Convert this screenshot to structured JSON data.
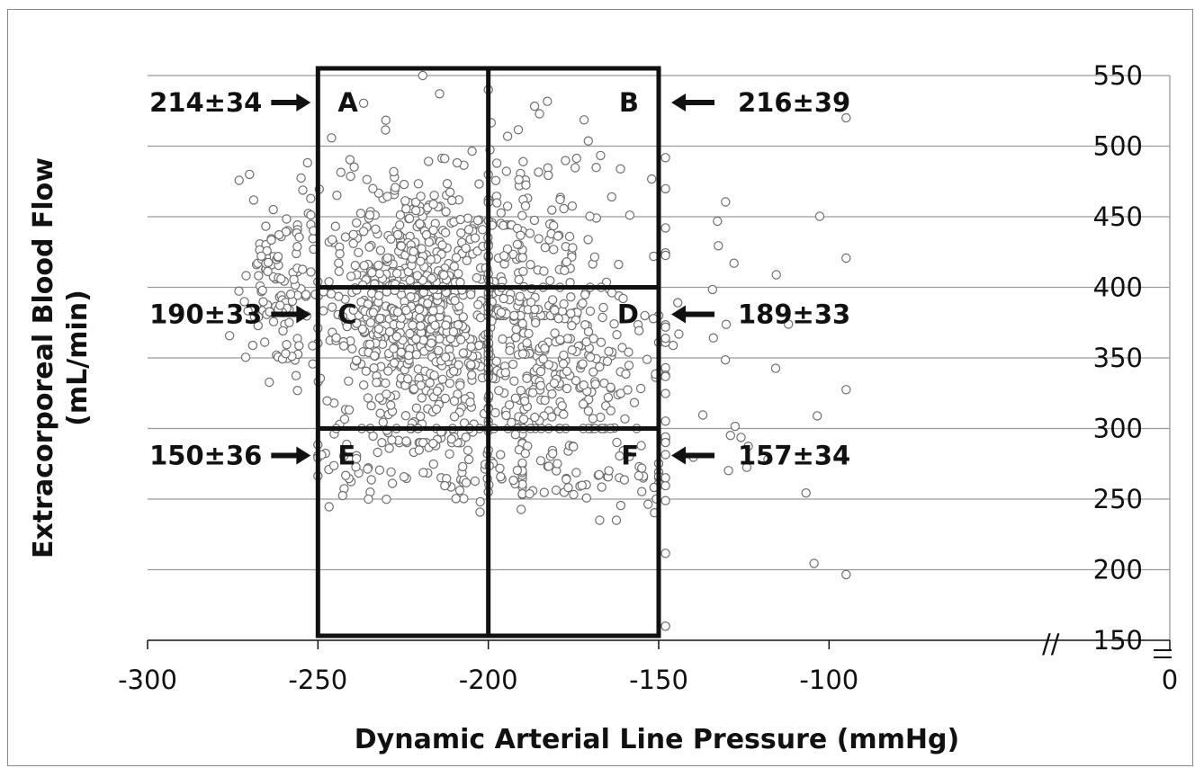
{
  "chart_data": {
    "type": "scatter",
    "xlabel": "Dynamic Arterial Line Pressure (mmHg)",
    "ylabel_line1": "Extracorporeal Blood Flow",
    "ylabel_line2": "(mL/min)",
    "xlim": [
      -300,
      0
    ],
    "ylim": [
      150,
      550
    ],
    "x_ticks": [
      -300,
      -250,
      -200,
      -150,
      -100,
      0
    ],
    "x_tick_labels": [
      "-300",
      "-250",
      "-200",
      "-150",
      "-100",
      "0"
    ],
    "y_ticks": [
      150,
      200,
      250,
      300,
      350,
      400,
      450,
      500,
      550
    ],
    "y_tick_labels": [
      "150",
      "200",
      "250",
      "300",
      "350",
      "400",
      "450",
      "500",
      "550"
    ],
    "y_axis_side": "right",
    "y_axis_break_marker": "//",
    "grid": "horizontal",
    "marker": {
      "shape": "open-circle",
      "stroke": "#6e6e6e"
    },
    "regions": {
      "x_bounds": [
        -250,
        -200,
        -150
      ],
      "y_bounds": [
        150,
        300,
        400,
        550
      ]
    },
    "quadrants": [
      {
        "label": "A",
        "value": "214±34",
        "x": -250,
        "y": 550,
        "side": "left"
      },
      {
        "label": "B",
        "value": "216±39",
        "x": -150,
        "y": 550,
        "side": "right"
      },
      {
        "label": "C",
        "value": "190±33",
        "x": -250,
        "y": 400,
        "side": "left"
      },
      {
        "label": "D",
        "value": "189±33",
        "x": -150,
        "y": 400,
        "side": "right"
      },
      {
        "label": "E",
        "value": "150±36",
        "x": -250,
        "y": 300,
        "side": "left"
      },
      {
        "label": "F",
        "value": "157±34",
        "x": -150,
        "y": 300,
        "side": "right"
      }
    ],
    "point_clusters": [
      {
        "region": "main-core",
        "n": 700,
        "x_mean": -222,
        "x_sd": 14,
        "y_mean": 390,
        "y_sd": 48,
        "x_range": [
          -256,
          -190
        ],
        "y_range": [
          290,
          550
        ]
      },
      {
        "region": "upper-right",
        "n": 150,
        "x_mean": -185,
        "x_sd": 12,
        "y_mean": 430,
        "y_sd": 55,
        "x_range": [
          -200,
          -150
        ],
        "y_range": [
          380,
          540
        ]
      },
      {
        "region": "middle-right",
        "n": 260,
        "x_mean": -182,
        "x_sd": 14,
        "y_mean": 345,
        "y_sd": 32,
        "x_range": [
          -200,
          -150
        ],
        "y_range": [
          300,
          400
        ]
      },
      {
        "region": "lower-middle",
        "n": 110,
        "x_mean": -215,
        "x_sd": 22,
        "y_mean": 278,
        "y_sd": 18,
        "x_range": [
          -250,
          -190
        ],
        "y_range": [
          230,
          300
        ]
      },
      {
        "region": "lower-right",
        "n": 75,
        "x_mean": -175,
        "x_sd": 16,
        "y_mean": 270,
        "y_sd": 16,
        "x_range": [
          -200,
          -150
        ],
        "y_range": [
          235,
          300
        ]
      },
      {
        "region": "left-tail",
        "n": 110,
        "x_mean": -262,
        "x_sd": 6,
        "y_mean": 400,
        "y_sd": 32,
        "x_range": [
          -282,
          -250
        ],
        "y_range": [
          320,
          480
        ]
      },
      {
        "region": "outliers",
        "n": 55,
        "x_mean": -140,
        "x_sd": 22,
        "y_mean": 320,
        "y_sd": 90,
        "x_range": [
          -148,
          -95
        ],
        "y_range": [
          160,
          520
        ]
      }
    ]
  }
}
